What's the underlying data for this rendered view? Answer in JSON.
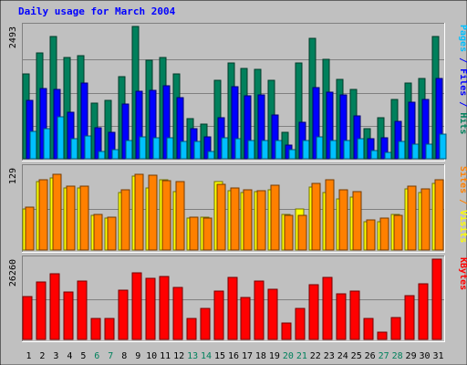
{
  "chart_data": {
    "type": "bar",
    "title": "Daily usage for March 2004",
    "title_color": "#0000ff",
    "background": "#c0c0c0",
    "categories": [
      "1",
      "2",
      "3",
      "4",
      "5",
      "6",
      "7",
      "8",
      "9",
      "10",
      "11",
      "12",
      "13",
      "14",
      "15",
      "16",
      "17",
      "18",
      "19",
      "20",
      "21",
      "22",
      "23",
      "24",
      "25",
      "26",
      "27",
      "28",
      "29",
      "30",
      "31"
    ],
    "weekend_days": [
      "6",
      "7",
      "13",
      "14",
      "20",
      "21",
      "27",
      "28"
    ],
    "weekday_label_color": "#000000",
    "weekend_label_color": "#00805c",
    "panels": [
      {
        "id": "hits",
        "ymax": 2493,
        "ymax_label": "2493",
        "legend": [
          {
            "text": "Pages",
            "color": "#00c0ff"
          },
          {
            "text": " / ",
            "color": "#0000ff"
          },
          {
            "text": "Files",
            "color": "#0000ff"
          },
          {
            "text": " / ",
            "color": "#0000ff"
          },
          {
            "text": "Hits",
            "color": "#00805c"
          }
        ],
        "series": [
          {
            "name": "Hits",
            "color": "#00805c",
            "values": [
              1600,
              2000,
              2300,
              1900,
              1950,
              1050,
              1100,
              1550,
              2493,
              1850,
              1900,
              1600,
              750,
              650,
              1480,
              1800,
              1700,
              1680,
              1480,
              500,
              1810,
              2270,
              1880,
              1500,
              1300,
              570,
              770,
              1120,
              1420,
              1520,
              2300
            ]
          },
          {
            "name": "Files",
            "color": "#0000ff",
            "values": [
              1100,
              1330,
              1310,
              880,
              1420,
              590,
              500,
              1040,
              1280,
              1290,
              1370,
              1160,
              560,
              410,
              780,
              1360,
              1190,
              1210,
              820,
              250,
              680,
              1340,
              1250,
              1210,
              810,
              380,
              400,
              700,
              1060,
              1120,
              1520
            ]
          },
          {
            "name": "Pages",
            "color": "#00c0ff",
            "values": [
              510,
              560,
              790,
              370,
              430,
              140,
              180,
              340,
              410,
              400,
              400,
              320,
              320,
              140,
              390,
              370,
              350,
              340,
              350,
              180,
              350,
              420,
              350,
              350,
              380,
              150,
              120,
              320,
              280,
              280,
              460
            ]
          }
        ]
      },
      {
        "id": "visits",
        "ymax": 129,
        "ymax_label": "129",
        "legend": [
          {
            "text": "Sites",
            "color": "#ff8000"
          },
          {
            "text": " / ",
            "color": "#ff8000"
          },
          {
            "text": "Visits",
            "color": "#ffff00"
          }
        ],
        "series": [
          {
            "name": "Visits",
            "color": "#ffff00",
            "values": [
              65,
              107,
              113,
              98,
              98,
              55,
              50,
              91,
              116,
              98,
              110,
              92,
              50,
              52,
              108,
              93,
              91,
              92,
              94,
              56,
              65,
              99,
              91,
              80,
              83,
              45,
              45,
              56,
              96,
              90,
              104
            ]
          },
          {
            "name": "Sites",
            "color": "#ff8000",
            "values": [
              67,
              110,
              119,
              100,
              101,
              56,
              52,
              94,
              119,
              117,
              109,
              107,
              51,
              50,
              103,
              98,
              95,
              93,
              102,
              54,
              54,
              104,
              111,
              95,
              92,
              48,
              50,
              55,
              101,
              96,
              110
            ]
          }
        ]
      },
      {
        "id": "kbytes",
        "ymax": 26260,
        "ymax_label": "26260",
        "legend": [
          {
            "text": "KBytes",
            "color": "#ff0000"
          }
        ],
        "series": [
          {
            "name": "KBytes",
            "color": "#ff0000",
            "values": [
              14000,
              18700,
              21500,
              15500,
              19000,
              7000,
              7000,
              16000,
              21900,
              20000,
              20500,
              17000,
              7000,
              10000,
              15800,
              20200,
              13800,
              19000,
              16400,
              5400,
              10200,
              17800,
              20300,
              14900,
              15800,
              6900,
              2300,
              7100,
              14400,
              18100,
              26260
            ]
          }
        ]
      }
    ]
  }
}
